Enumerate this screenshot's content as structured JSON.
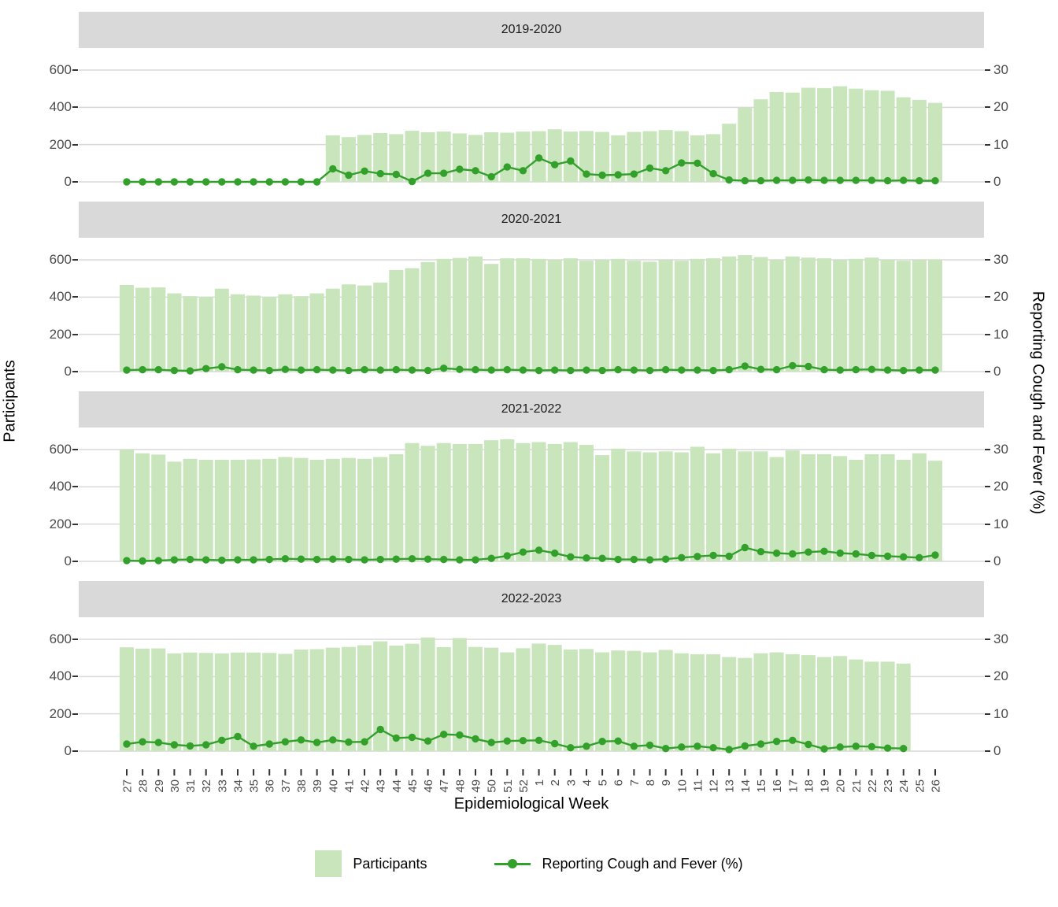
{
  "style": {
    "bar_color": "#c8e5bb",
    "line_color": "#33a02c",
    "grid_color": "#d9d9d9",
    "strip_bg": "#d9d9d9",
    "tick_mark_color": "#333333",
    "tick_text_color": "#4d4d4d"
  },
  "chart_data": {
    "type": "combo: bar (Participants) + line with points (Reporting Cough and Fever %), faceted by season",
    "xlabel": "Epidemiological Week",
    "ylabel_left": "Participants",
    "ylabel_right": "Reporting Cough and Fever (%)",
    "y_left_ticks": [
      0,
      200,
      400,
      600
    ],
    "y_right_ticks": [
      0,
      10,
      20,
      30
    ],
    "axis_note": "left axis 600 participants aligns with right axis 30%",
    "grid": "horizontal major gridlines only",
    "legend_position": "bottom",
    "legend": [
      "Participants",
      "Reporting Cough and Fever (%)"
    ],
    "weeks": [
      "27",
      "28",
      "29",
      "30",
      "31",
      "32",
      "33",
      "34",
      "35",
      "36",
      "37",
      "38",
      "39",
      "40",
      "41",
      "42",
      "43",
      "44",
      "45",
      "46",
      "47",
      "48",
      "49",
      "50",
      "51",
      "52",
      "1",
      "2",
      "3",
      "4",
      "5",
      "6",
      "7",
      "8",
      "9",
      "10",
      "11",
      "12",
      "13",
      "14",
      "15",
      "16",
      "17",
      "18",
      "19",
      "20",
      "21",
      "22",
      "23",
      "24",
      "25",
      "26"
    ],
    "facets": [
      {
        "season": "2019-2020",
        "participants": [
          0,
          0,
          0,
          0,
          0,
          0,
          0,
          0,
          0,
          0,
          0,
          0,
          0,
          250,
          240,
          252,
          262,
          256,
          274,
          266,
          270,
          260,
          252,
          266,
          264,
          270,
          272,
          282,
          270,
          273,
          268,
          250,
          268,
          272,
          278,
          272,
          250,
          256,
          312,
          398,
          443,
          482,
          479,
          505,
          503,
          513,
          500,
          492,
          489,
          454,
          440,
          424
        ],
        "reporting_pct": [
          0,
          0,
          0,
          0,
          0,
          0,
          0,
          0,
          0,
          0,
          0,
          0,
          0,
          3.5,
          1.8,
          2.9,
          2.2,
          2,
          0.1,
          2.3,
          2.3,
          3.4,
          3,
          1.4,
          4,
          3,
          6.4,
          4.6,
          5.6,
          2.1,
          1.8,
          1.9,
          2.1,
          3.7,
          3,
          5.1,
          5,
          2.2,
          0.5,
          0.3,
          0.3,
          0.4,
          0.4,
          0.5,
          0.4,
          0.4,
          0.4,
          0.4,
          0.3,
          0.4,
          0.3,
          0.3
        ]
      },
      {
        "season": "2020-2021",
        "participants": [
          465,
          450,
          452,
          420,
          405,
          400,
          445,
          415,
          408,
          400,
          415,
          405,
          420,
          445,
          468,
          462,
          478,
          545,
          555,
          588,
          605,
          610,
          618,
          578,
          608,
          608,
          605,
          600,
          608,
          595,
          600,
          605,
          595,
          590,
          600,
          595,
          605,
          608,
          618,
          625,
          615,
          600,
          618,
          612,
          608,
          600,
          605,
          612,
          600,
          595,
          600,
          602
        ],
        "reporting_pct": [
          0.4,
          0.5,
          0.5,
          0.3,
          0.2,
          0.8,
          1.3,
          0.5,
          0.4,
          0.3,
          0.6,
          0.4,
          0.5,
          0.4,
          0.3,
          0.5,
          0.4,
          0.5,
          0.4,
          0.3,
          0.9,
          0.6,
          0.5,
          0.4,
          0.5,
          0.4,
          0.3,
          0.4,
          0.3,
          0.4,
          0.3,
          0.5,
          0.4,
          0.3,
          0.5,
          0.4,
          0.4,
          0.3,
          0.5,
          1.5,
          0.6,
          0.5,
          1.6,
          1.4,
          0.5,
          0.4,
          0.5,
          0.6,
          0.4,
          0.3,
          0.4,
          0.4
        ]
      },
      {
        "season": "2021-2022",
        "participants": [
          600,
          580,
          573,
          535,
          550,
          545,
          545,
          545,
          547,
          550,
          560,
          555,
          545,
          550,
          555,
          550,
          560,
          575,
          635,
          620,
          635,
          630,
          630,
          650,
          655,
          635,
          640,
          630,
          640,
          625,
          570,
          605,
          590,
          585,
          590,
          585,
          615,
          580,
          605,
          590,
          590,
          560,
          595,
          575,
          575,
          565,
          545,
          575,
          575,
          545,
          580,
          540
        ],
        "reporting_pct": [
          0.2,
          0.1,
          0.2,
          0.4,
          0.5,
          0.4,
          0.3,
          0.4,
          0.4,
          0.5,
          0.7,
          0.6,
          0.5,
          0.6,
          0.5,
          0.4,
          0.5,
          0.6,
          0.7,
          0.6,
          0.5,
          0.4,
          0.4,
          0.8,
          1.5,
          2.5,
          3,
          2.2,
          1.2,
          0.9,
          0.8,
          0.5,
          0.5,
          0.4,
          0.6,
          1,
          1.3,
          1.6,
          1.4,
          3.7,
          2.6,
          2.2,
          2,
          2.5,
          2.7,
          2.2,
          2,
          1.6,
          1.4,
          1.2,
          1,
          1.7
        ]
      },
      {
        "season": "2022-2023",
        "participants": [
          557,
          550,
          551,
          524,
          529,
          527,
          524,
          529,
          529,
          527,
          522,
          545,
          547,
          555,
          559,
          568,
          589,
          566,
          576,
          610,
          558,
          607,
          559,
          555,
          530,
          552,
          577,
          570,
          545,
          548,
          530,
          540,
          538,
          530,
          543,
          525,
          520,
          520,
          505,
          500,
          525,
          530,
          520,
          515,
          505,
          510,
          492,
          480,
          480,
          470,
          null,
          null
        ],
        "reporting_pct": [
          1.9,
          2.5,
          2.3,
          1.7,
          1.4,
          1.7,
          2.9,
          3.9,
          1.3,
          1.9,
          2.5,
          3,
          2.3,
          3,
          2.4,
          2.5,
          5.8,
          3.5,
          3.7,
          2.7,
          4.5,
          4.3,
          3.3,
          2.3,
          2.7,
          2.8,
          2.9,
          2,
          0.9,
          1.3,
          2.6,
          2.7,
          1.3,
          1.6,
          0.7,
          1.1,
          1.3,
          0.9,
          0.4,
          1.4,
          1.9,
          2.6,
          2.9,
          1.8,
          0.6,
          1.1,
          1.3,
          1.2,
          0.8,
          0.7,
          null,
          null
        ]
      }
    ]
  }
}
